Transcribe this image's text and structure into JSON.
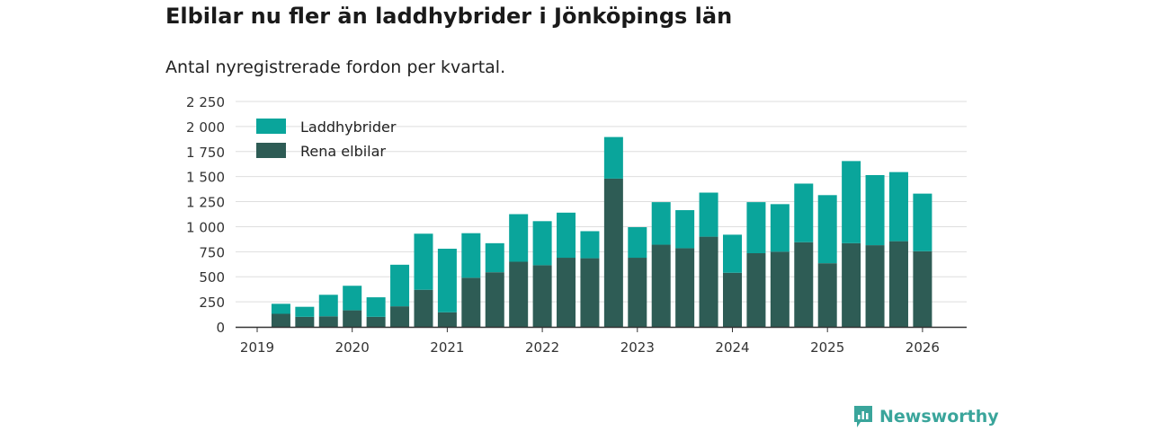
{
  "title": "Elbilar nu fler än laddhybrider i Jönköpings län",
  "subtitle": "Antal nyregistrerade fordon per kvartal.",
  "brand": {
    "name": "Newsworthy",
    "icon": "newsworthy-logo-icon",
    "color": "#3aa59b"
  },
  "chart_data": {
    "type": "bar",
    "stacked": true,
    "title": "Elbilar nu fler än laddhybrider i Jönköpings län",
    "subtitle": "Antal nyregistrerade fordon per kvartal.",
    "xlabel": "",
    "ylabel": "",
    "ylim": [
      0,
      2250
    ],
    "yticks": [
      0,
      250,
      500,
      750,
      1000,
      1250,
      1500,
      1750,
      2000,
      2250
    ],
    "ytick_labels": [
      "0",
      "250",
      "500",
      "750",
      "1 000",
      "1 250",
      "1 500",
      "1 750",
      "2 000",
      "2 250"
    ],
    "xticks": [
      "2019",
      "2020",
      "2021",
      "2022",
      "2023",
      "2024",
      "2025",
      "2026"
    ],
    "categories": [
      "2019 Q2",
      "2019 Q3",
      "2019 Q4",
      "2020 Q1",
      "2020 Q2",
      "2020 Q3",
      "2020 Q4",
      "2021 Q1",
      "2021 Q2",
      "2021 Q3",
      "2021 Q4",
      "2022 Q1",
      "2022 Q2",
      "2022 Q3",
      "2022 Q4",
      "2023 Q1",
      "2023 Q2",
      "2023 Q3",
      "2023 Q4",
      "2024 Q1",
      "2024 Q2",
      "2024 Q3",
      "2024 Q4",
      "2025 Q1",
      "2025 Q2",
      "2025 Q3",
      "2025 Q4",
      "2026 Q1"
    ],
    "grid": true,
    "legend_position": "top-left",
    "series": [
      {
        "name": "Rena elbilar",
        "color": "#2e5c55",
        "values": [
          130,
          100,
          105,
          165,
          100,
          205,
          370,
          145,
          490,
          545,
          650,
          615,
          690,
          685,
          1480,
          690,
          820,
          785,
          900,
          540,
          735,
          750,
          845,
          635,
          835,
          815,
          855,
          755
        ]
      },
      {
        "name": "Laddhybrider",
        "color": "#0aa59b",
        "values": [
          100,
          100,
          215,
          245,
          195,
          415,
          560,
          635,
          445,
          290,
          475,
          440,
          450,
          270,
          415,
          305,
          425,
          380,
          440,
          380,
          510,
          475,
          585,
          680,
          820,
          700,
          690,
          575
        ]
      }
    ],
    "legend_order": [
      "Laddhybrider",
      "Rena elbilar"
    ]
  }
}
